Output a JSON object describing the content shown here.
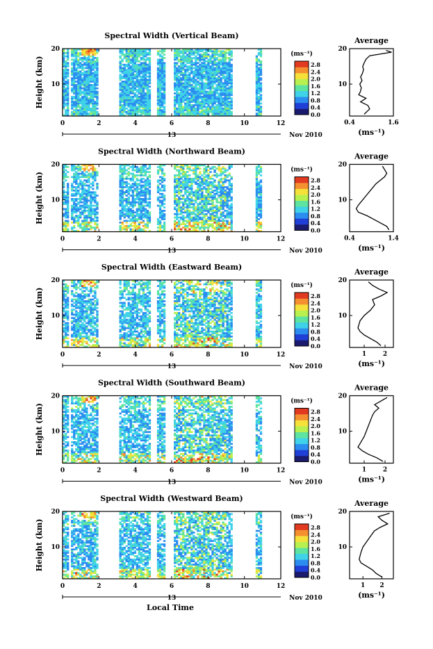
{
  "chart_data": {
    "type": "heatmap",
    "date_label": "Nov 2010",
    "day_marker": "13",
    "xlabel": "Local Time",
    "ylabel": "Height (km)",
    "unit": "(ms⁻¹)",
    "x_ticks": [
      "0",
      "2",
      "4",
      "6",
      "8",
      "10",
      "12"
    ],
    "y_ticks": [
      "10",
      "20"
    ],
    "colorbar_ticks": [
      "0.0",
      "0.4",
      "0.8",
      "1.2",
      "1.6",
      "2.0",
      "2.4",
      "2.8"
    ],
    "side_title": "Average",
    "side_xlabel": "(ms⁻¹)",
    "xlim": [
      0,
      12
    ],
    "ylim": [
      1,
      20
    ],
    "colorbar_range": [
      0,
      3.0
    ],
    "data_time_gaps": [
      [
        0.3,
        0.5
      ],
      [
        2.0,
        3.1
      ],
      [
        4.9,
        5.2
      ],
      [
        5.6,
        6.1
      ],
      [
        9.4,
        10.6
      ],
      [
        11.0,
        12.0
      ]
    ],
    "colors": [
      "#1a1a6e",
      "#1f3fd6",
      "#2b8df0",
      "#3fd2e8",
      "#5ee4a0",
      "#b8f050",
      "#f5e13a",
      "#f59030",
      "#e23a20"
    ],
    "panels": [
      {
        "title": "Spectral Width (Vertical Beam)",
        "side_ticks": [
          "0.4",
          "1.6"
        ],
        "side_xlim": [
          0.4,
          1.6
        ],
        "avg_profile": {
          "height": [
            1.5,
            3,
            4,
            5,
            6,
            7,
            8,
            9,
            10,
            11,
            12,
            13,
            14,
            15,
            16,
            17,
            18,
            19,
            19.5
          ],
          "value": [
            0.8,
            0.95,
            0.9,
            0.7,
            0.85,
            0.65,
            0.7,
            0.72,
            0.68,
            0.74,
            0.7,
            0.75,
            0.78,
            0.76,
            0.8,
            0.85,
            0.95,
            1.55,
            1.4
          ]
        }
      },
      {
        "title": "Spectral Width (Northward Beam)",
        "side_ticks": [
          "0.4",
          "1.4"
        ],
        "side_xlim": [
          0.4,
          1.4
        ],
        "avg_profile": {
          "height": [
            1.5,
            2.5,
            3.5,
            4.5,
            5.5,
            6.5,
            7.5,
            8.5,
            10,
            11.5,
            13,
            14.5,
            15.5,
            16.5,
            17.5,
            18.5,
            19.5
          ],
          "value": [
            1.3,
            1.25,
            1.1,
            0.95,
            0.8,
            0.6,
            0.55,
            0.6,
            0.7,
            0.8,
            0.9,
            1.0,
            1.1,
            1.2,
            1.25,
            1.2,
            1.15
          ]
        }
      },
      {
        "title": "Spectral Width (Eastward Beam)",
        "side_ticks": [
          "1",
          "2"
        ],
        "side_xlim": [
          0.3,
          2.4
        ],
        "avg_profile": {
          "height": [
            1.5,
            2.5,
            3.5,
            4.5,
            5.5,
            6.5,
            7.5,
            8.5,
            10,
            11.5,
            13,
            14.5,
            15.5,
            16.5,
            17.5,
            18.5,
            19.5
          ],
          "value": [
            1.8,
            1.6,
            1.3,
            1.0,
            0.8,
            0.7,
            0.75,
            0.8,
            1.0,
            1.3,
            1.5,
            1.4,
            1.8,
            2.1,
            1.7,
            1.4,
            1.2
          ]
        }
      },
      {
        "title": "Spectral Width (Southward Beam)",
        "side_ticks": [
          "1",
          "2"
        ],
        "side_xlim": [
          0.3,
          2.4
        ],
        "avg_profile": {
          "height": [
            1.5,
            2.5,
            3.5,
            4.5,
            5.5,
            6.5,
            7.5,
            8.5,
            10,
            11.5,
            13,
            14.5,
            15.5,
            16.5,
            17.5,
            18.5,
            19.5
          ],
          "value": [
            1.9,
            1.6,
            1.2,
            0.9,
            0.7,
            0.8,
            0.9,
            1.0,
            1.1,
            1.2,
            1.3,
            1.4,
            1.5,
            1.7,
            1.5,
            1.8,
            2.1
          ]
        }
      },
      {
        "title": "Spectral Width (Westward Beam)",
        "side_ticks": [
          "1",
          "2"
        ],
        "side_xlim": [
          0.3,
          2.6
        ],
        "avg_profile": {
          "height": [
            1.5,
            2.5,
            3.5,
            4.5,
            5.5,
            6.5,
            7.5,
            8.5,
            10,
            11.5,
            13,
            14.5,
            15.5,
            16.5,
            17.5,
            18.5,
            19.5
          ],
          "value": [
            2.0,
            1.7,
            1.5,
            1.2,
            0.9,
            0.8,
            0.85,
            0.9,
            1.0,
            1.2,
            1.4,
            1.6,
            1.9,
            2.3,
            2.0,
            1.8,
            2.4
          ]
        }
      }
    ]
  }
}
